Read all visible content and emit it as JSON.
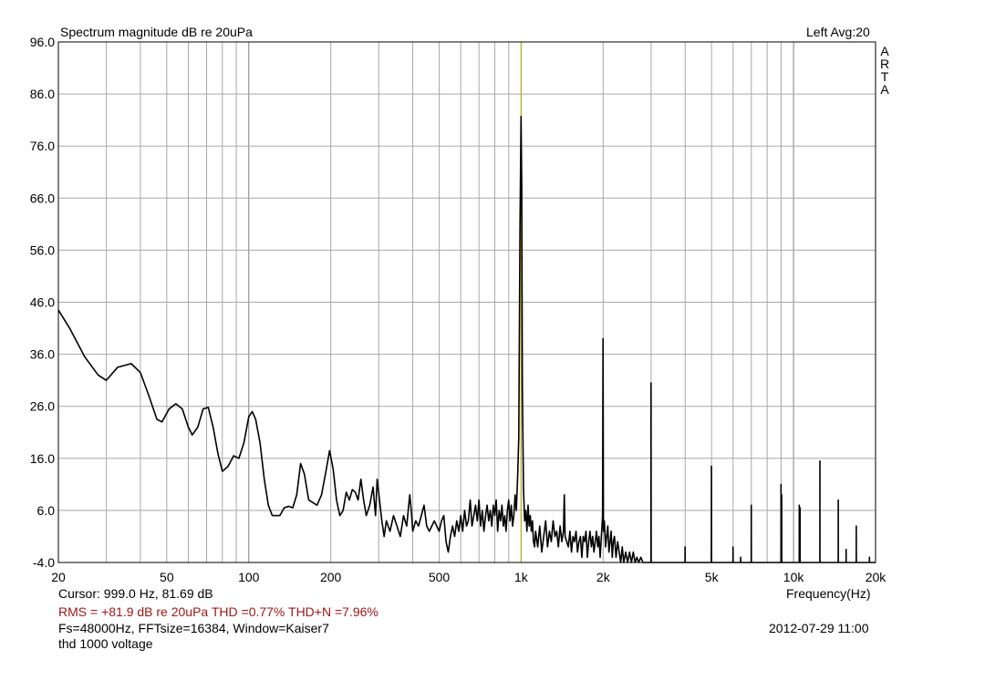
{
  "header": {
    "title": "Spectrum magnitude dB re 20uPa",
    "channel_avg": "Left  Avg:20",
    "brand_letters": [
      "A",
      "R",
      "T",
      "A"
    ]
  },
  "footer": {
    "cursor": "Cursor:   999.0 Hz, 81.69 dB",
    "frequency_label": "Frequency(Hz)",
    "rms_line": "RMS =  +81.9 dB re 20uPa   THD =0.77%   THD+N =7.96%",
    "fs_line": "Fs=48000Hz, FFTsize=16384, Window=Kaiser7",
    "datetime": "2012-07-29  11:00",
    "note": "thd 1000 voltage"
  },
  "colors": {
    "grid": "#a8a8a8",
    "trace": "#000000",
    "cursor_line": "#c8b000",
    "rms_text": "#a01818"
  },
  "chart_data": {
    "type": "line",
    "title": "Spectrum magnitude dB re 20uPa",
    "xlabel": "Frequency(Hz)",
    "ylabel": "",
    "x_scale": "log",
    "xlim": [
      20,
      20000
    ],
    "ylim": [
      -4,
      96
    ],
    "x_ticks": [
      20,
      50,
      100,
      200,
      500,
      1000,
      2000,
      5000,
      10000,
      20000
    ],
    "x_tick_labels": [
      "20",
      "50",
      "100",
      "200",
      "500",
      "1k",
      "2k",
      "5k",
      "10k",
      "20k"
    ],
    "y_ticks": [
      -4,
      6,
      16,
      26,
      36,
      46,
      56,
      66,
      76,
      86,
      96
    ],
    "y_tick_labels": [
      "-4.0",
      "6.0",
      "16.0",
      "26.0",
      "36.0",
      "46.0",
      "56.0",
      "66.0",
      "76.0",
      "86.0",
      "96.0"
    ],
    "grid": true,
    "cursor": {
      "x": 999,
      "y": 81.69
    },
    "series": [
      {
        "values": [
          [
            20,
            44.5
          ],
          [
            22,
            41
          ],
          [
            25,
            35.5
          ],
          [
            28,
            32
          ],
          [
            30,
            31
          ],
          [
            33,
            33.5
          ],
          [
            37,
            34.2
          ],
          [
            40,
            32.5
          ],
          [
            43,
            28
          ],
          [
            46,
            23.5
          ],
          [
            48,
            23
          ],
          [
            51,
            25.5
          ],
          [
            54,
            26.5
          ],
          [
            57,
            25.5
          ],
          [
            60,
            22
          ],
          [
            62,
            20.5
          ],
          [
            65,
            22
          ],
          [
            68,
            25.5
          ],
          [
            71,
            25.8
          ],
          [
            74,
            22
          ],
          [
            77,
            17
          ],
          [
            80,
            13.5
          ],
          [
            84,
            14.5
          ],
          [
            88,
            16.5
          ],
          [
            92,
            16
          ],
          [
            96,
            19
          ],
          [
            100,
            24
          ],
          [
            103,
            25
          ],
          [
            106,
            23.5
          ],
          [
            110,
            19
          ],
          [
            114,
            12
          ],
          [
            118,
            7
          ],
          [
            122,
            5
          ],
          [
            126,
            5
          ],
          [
            130,
            5
          ],
          [
            135,
            6.5
          ],
          [
            140,
            6.8
          ],
          [
            145,
            6.5
          ],
          [
            150,
            9
          ],
          [
            155,
            15
          ],
          [
            160,
            13
          ],
          [
            166,
            8
          ],
          [
            172,
            7.5
          ],
          [
            178,
            7
          ],
          [
            185,
            9
          ],
          [
            192,
            13.5
          ],
          [
            198,
            17.5
          ],
          [
            204,
            14
          ],
          [
            210,
            8
          ],
          [
            216,
            5
          ],
          [
            222,
            6
          ],
          [
            228,
            9.5
          ],
          [
            234,
            8
          ],
          [
            240,
            10
          ],
          [
            246,
            9.5
          ],
          [
            252,
            8
          ],
          [
            258,
            12
          ],
          [
            264,
            8
          ],
          [
            270,
            5
          ],
          [
            278,
            7
          ],
          [
            286,
            10.5
          ],
          [
            292,
            5
          ],
          [
            296,
            12
          ],
          [
            302,
            8
          ],
          [
            308,
            4
          ],
          [
            314,
            1
          ],
          [
            320,
            4
          ],
          [
            330,
            2
          ],
          [
            340,
            5
          ],
          [
            350,
            3
          ],
          [
            360,
            1
          ],
          [
            370,
            5
          ],
          [
            380,
            3
          ],
          [
            390,
            9
          ],
          [
            395,
            6
          ],
          [
            400,
            2
          ],
          [
            410,
            4
          ],
          [
            420,
            3
          ],
          [
            430,
            5
          ],
          [
            440,
            7
          ],
          [
            450,
            3
          ],
          [
            460,
            2
          ],
          [
            470,
            3
          ],
          [
            480,
            4
          ],
          [
            490,
            3
          ],
          [
            500,
            2
          ],
          [
            510,
            4
          ],
          [
            520,
            5
          ],
          [
            530,
            0
          ],
          [
            540,
            -2
          ],
          [
            550,
            1
          ],
          [
            560,
            3
          ],
          [
            570,
            1
          ],
          [
            580,
            4
          ],
          [
            590,
            2
          ],
          [
            600,
            5
          ],
          [
            610,
            2
          ],
          [
            620,
            6
          ],
          [
            630,
            3
          ],
          [
            640,
            4
          ],
          [
            650,
            8
          ],
          [
            660,
            3
          ],
          [
            670,
            5
          ],
          [
            680,
            7
          ],
          [
            690,
            4
          ],
          [
            700,
            8
          ],
          [
            710,
            3
          ],
          [
            720,
            6
          ],
          [
            730,
            2
          ],
          [
            740,
            5
          ],
          [
            750,
            7
          ],
          [
            760,
            4
          ],
          [
            770,
            6
          ],
          [
            780,
            3
          ],
          [
            790,
            7
          ],
          [
            800,
            5
          ],
          [
            810,
            8
          ],
          [
            820,
            2
          ],
          [
            830,
            6
          ],
          [
            840,
            4
          ],
          [
            850,
            7
          ],
          [
            860,
            3
          ],
          [
            870,
            5
          ],
          [
            880,
            2
          ],
          [
            890,
            6
          ],
          [
            900,
            8
          ],
          [
            910,
            4
          ],
          [
            920,
            7
          ],
          [
            930,
            3
          ],
          [
            940,
            5
          ],
          [
            950,
            9
          ],
          [
            960,
            6
          ],
          [
            970,
            12
          ],
          [
            980,
            20
          ],
          [
            990,
            60
          ],
          [
            999,
            81.7
          ],
          [
            1005,
            68
          ],
          [
            1010,
            30
          ],
          [
            1020,
            10
          ],
          [
            1030,
            4
          ],
          [
            1040,
            6
          ],
          [
            1050,
            2
          ],
          [
            1060,
            7
          ],
          [
            1070,
            3
          ],
          [
            1080,
            5
          ],
          [
            1090,
            2
          ],
          [
            1100,
            4
          ],
          [
            1110,
            0
          ],
          [
            1120,
            -1
          ],
          [
            1130,
            2
          ],
          [
            1150,
            -1
          ],
          [
            1170,
            3
          ],
          [
            1190,
            -2
          ],
          [
            1210,
            1
          ],
          [
            1230,
            4
          ],
          [
            1250,
            -1
          ],
          [
            1270,
            2
          ],
          [
            1290,
            0
          ],
          [
            1310,
            4
          ],
          [
            1330,
            1
          ],
          [
            1350,
            2
          ],
          [
            1370,
            -1
          ],
          [
            1390,
            3
          ],
          [
            1410,
            0
          ],
          [
            1430,
            2
          ],
          [
            1440,
            9
          ],
          [
            1450,
            1
          ],
          [
            1470,
            0
          ],
          [
            1490,
            -1
          ],
          [
            1510,
            2
          ],
          [
            1530,
            -2
          ],
          [
            1550,
            1
          ],
          [
            1570,
            0
          ],
          [
            1590,
            2
          ],
          [
            1610,
            -2
          ],
          [
            1630,
            0
          ],
          [
            1650,
            1
          ],
          [
            1670,
            -3
          ],
          [
            1690,
            1
          ],
          [
            1710,
            0
          ],
          [
            1730,
            2
          ],
          [
            1750,
            -3
          ],
          [
            1770,
            0
          ],
          [
            1790,
            2
          ],
          [
            1810,
            -1
          ],
          [
            1830,
            1
          ],
          [
            1850,
            -2
          ],
          [
            1870,
            0
          ],
          [
            1890,
            2
          ],
          [
            1910,
            -1
          ],
          [
            1930,
            1
          ],
          [
            1950,
            -3
          ],
          [
            1970,
            1
          ],
          [
            1990,
            5
          ],
          [
            1998,
            39
          ],
          [
            2005,
            2
          ],
          [
            2020,
            4
          ],
          [
            2040,
            -1
          ],
          [
            2060,
            1
          ],
          [
            2080,
            3
          ],
          [
            2100,
            -2
          ],
          [
            2120,
            0
          ],
          [
            2140,
            2
          ],
          [
            2160,
            -3
          ],
          [
            2180,
            0
          ],
          [
            2200,
            1
          ],
          [
            2230,
            -3
          ],
          [
            2260,
            0
          ],
          [
            2290,
            -2
          ],
          [
            2320,
            -4
          ],
          [
            2350,
            -1
          ],
          [
            2380,
            -4
          ],
          [
            2420,
            -2
          ],
          [
            2460,
            -4
          ],
          [
            2500,
            -2
          ],
          [
            2540,
            -4
          ],
          [
            2580,
            -2
          ],
          [
            2620,
            -4
          ],
          [
            2660,
            -3
          ],
          [
            2700,
            -4
          ],
          [
            2750,
            -3
          ],
          [
            2800,
            -4
          ],
          [
            2850,
            -4
          ],
          [
            2900,
            -4
          ],
          [
            2960,
            -4
          ],
          [
            2995,
            -4
          ],
          [
            2998,
            30.5
          ],
          [
            3001,
            -4
          ],
          [
            3100,
            -4
          ],
          [
            3500,
            -4
          ],
          [
            3995,
            -4
          ],
          [
            3998,
            -1
          ],
          [
            4001,
            -4
          ],
          [
            4990,
            -4
          ],
          [
            4995,
            14.5
          ],
          [
            5000,
            -4
          ],
          [
            5990,
            -4
          ],
          [
            5995,
            -1
          ],
          [
            6000,
            -4
          ],
          [
            6390,
            -4
          ],
          [
            6395,
            -3
          ],
          [
            6400,
            -4
          ],
          [
            6990,
            -4
          ],
          [
            6995,
            7
          ],
          [
            7000,
            -4
          ],
          [
            8990,
            -4
          ],
          [
            8995,
            11
          ],
          [
            9000,
            -4
          ],
          [
            9040,
            -4
          ],
          [
            9045,
            9
          ],
          [
            9050,
            -4
          ],
          [
            10490,
            -4
          ],
          [
            10495,
            7
          ],
          [
            10500,
            -4
          ],
          [
            10560,
            -4
          ],
          [
            10565,
            6.5
          ],
          [
            10570,
            -4
          ],
          [
            12490,
            -4
          ],
          [
            12495,
            15.5
          ],
          [
            12500,
            -4
          ],
          [
            14590,
            -4
          ],
          [
            14595,
            8
          ],
          [
            14600,
            -4
          ],
          [
            15590,
            -4
          ],
          [
            15595,
            -1.5
          ],
          [
            15600,
            -4
          ],
          [
            16990,
            -4
          ],
          [
            16995,
            3
          ],
          [
            17000,
            -4
          ],
          [
            18990,
            -4
          ],
          [
            18995,
            -3
          ],
          [
            19000,
            -4
          ],
          [
            20000,
            -4
          ]
        ]
      }
    ]
  }
}
